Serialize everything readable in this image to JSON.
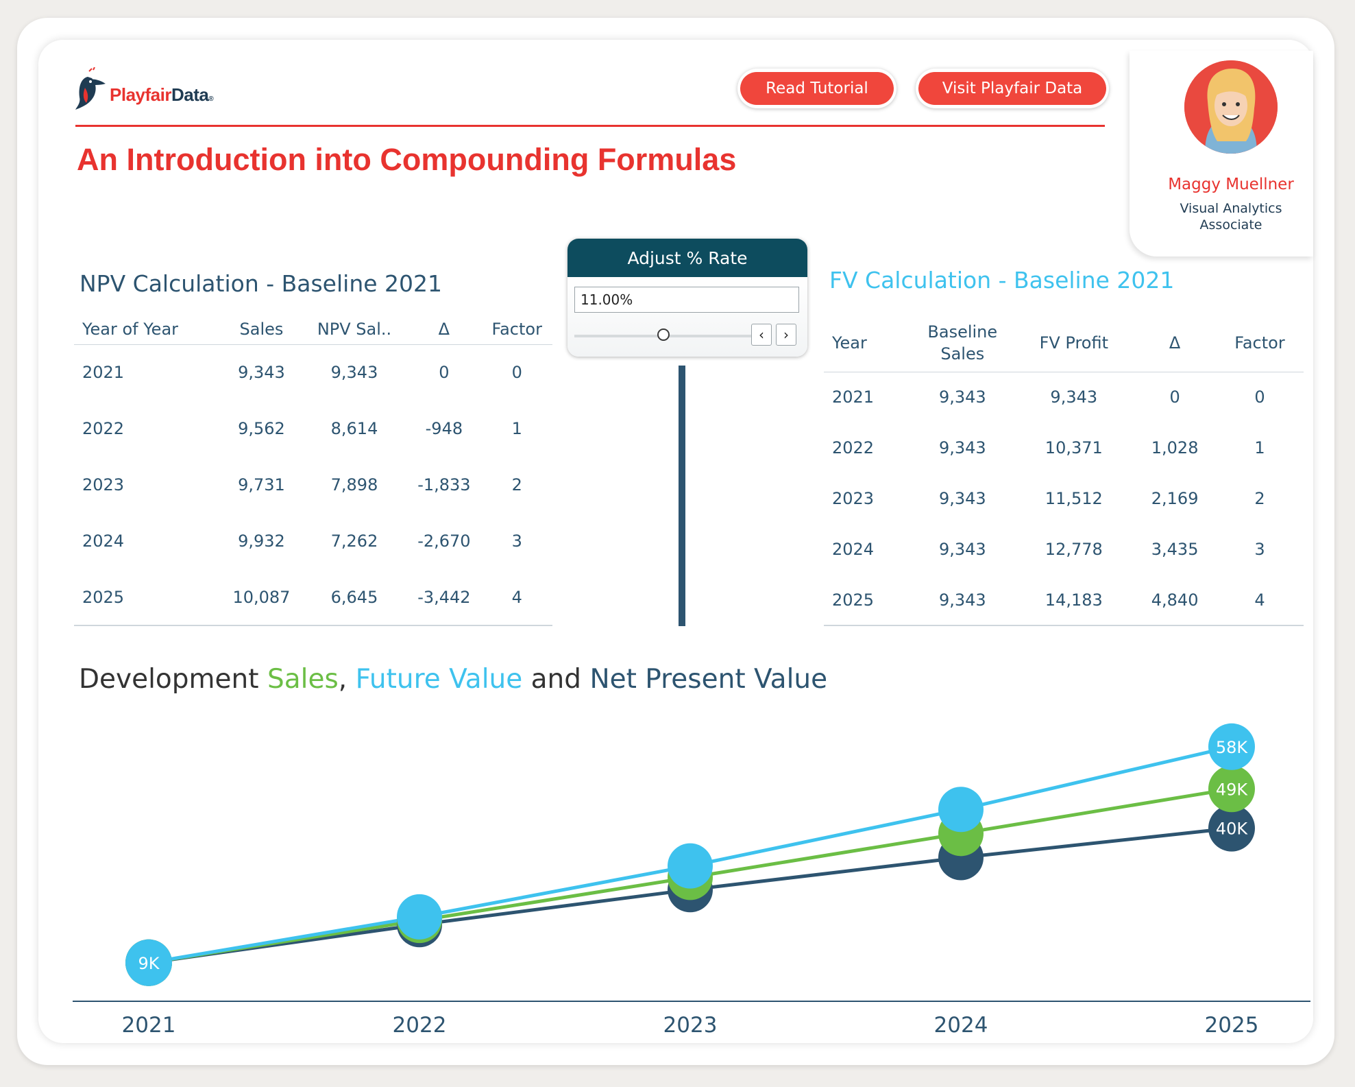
{
  "header": {
    "logo_part1": "Playfair",
    "logo_part2": "Data",
    "logo_mark": "®",
    "buttons": {
      "tutorial": "Read Tutorial",
      "visit": "Visit Playfair Data"
    },
    "title": "An Introduction into Compounding Formulas"
  },
  "author": {
    "name": "Maggy Muellner",
    "role_line1": "Visual Analytics",
    "role_line2": "Associate"
  },
  "npv": {
    "title": "NPV Calculation - Baseline 2021",
    "columns": [
      "Year of Year",
      "Sales",
      "NPV Sal..",
      "Δ",
      "Factor"
    ],
    "rows": [
      [
        "2021",
        "9,343",
        "9,343",
        "0",
        "0"
      ],
      [
        "2022",
        "9,562",
        "8,614",
        "-948",
        "1"
      ],
      [
        "2023",
        "9,731",
        "7,898",
        "-1,833",
        "2"
      ],
      [
        "2024",
        "9,932",
        "7,262",
        "-2,670",
        "3"
      ],
      [
        "2025",
        "10,087",
        "6,645",
        "-3,442",
        "4"
      ]
    ]
  },
  "fv": {
    "title": "FV Calculation - Baseline 2021",
    "columns": [
      "Year",
      "Baseline Sales",
      "FV Profit",
      "Δ",
      "Factor"
    ],
    "rows": [
      [
        "2021",
        "9,343",
        "9,343",
        "0",
        "0"
      ],
      [
        "2022",
        "9,343",
        "10,371",
        "1,028",
        "1"
      ],
      [
        "2023",
        "9,343",
        "11,512",
        "2,169",
        "2"
      ],
      [
        "2024",
        "9,343",
        "12,778",
        "3,435",
        "3"
      ],
      [
        "2025",
        "9,343",
        "14,183",
        "4,840",
        "4"
      ]
    ]
  },
  "parameter": {
    "label": "Adjust % Rate",
    "value": "11.00%",
    "slider_fraction": 0.5
  },
  "chart_title": {
    "prefix": "Development ",
    "sales": "Sales",
    "sep": ", ",
    "fv": "Future Value",
    "and": " and ",
    "npv": "Net Present Value"
  },
  "chart_data": {
    "type": "line",
    "x": [
      "2021",
      "2022",
      "2023",
      "2024",
      "2025"
    ],
    "ylim": [
      9000,
      58000
    ],
    "series": [
      {
        "name": "Net Present Value",
        "color": "#2d5470",
        "values": [
          9343,
          17957,
          25855,
          33117,
          39762
        ]
      },
      {
        "name": "Sales",
        "color": "#6bbe45",
        "values": [
          9343,
          18905,
          28636,
          38568,
          48655
        ]
      },
      {
        "name": "Future Value",
        "color": "#3ec2ee",
        "values": [
          9343,
          19714,
          31226,
          44004,
          58187
        ]
      }
    ],
    "data_labels": [
      {
        "series": "Future Value",
        "index": 0,
        "text": "9K"
      },
      {
        "series": "Future Value",
        "index": 4,
        "text": "58K"
      },
      {
        "series": "Sales",
        "index": 4,
        "text": "49K"
      },
      {
        "series": "Net Present Value",
        "index": 4,
        "text": "40K"
      }
    ]
  }
}
